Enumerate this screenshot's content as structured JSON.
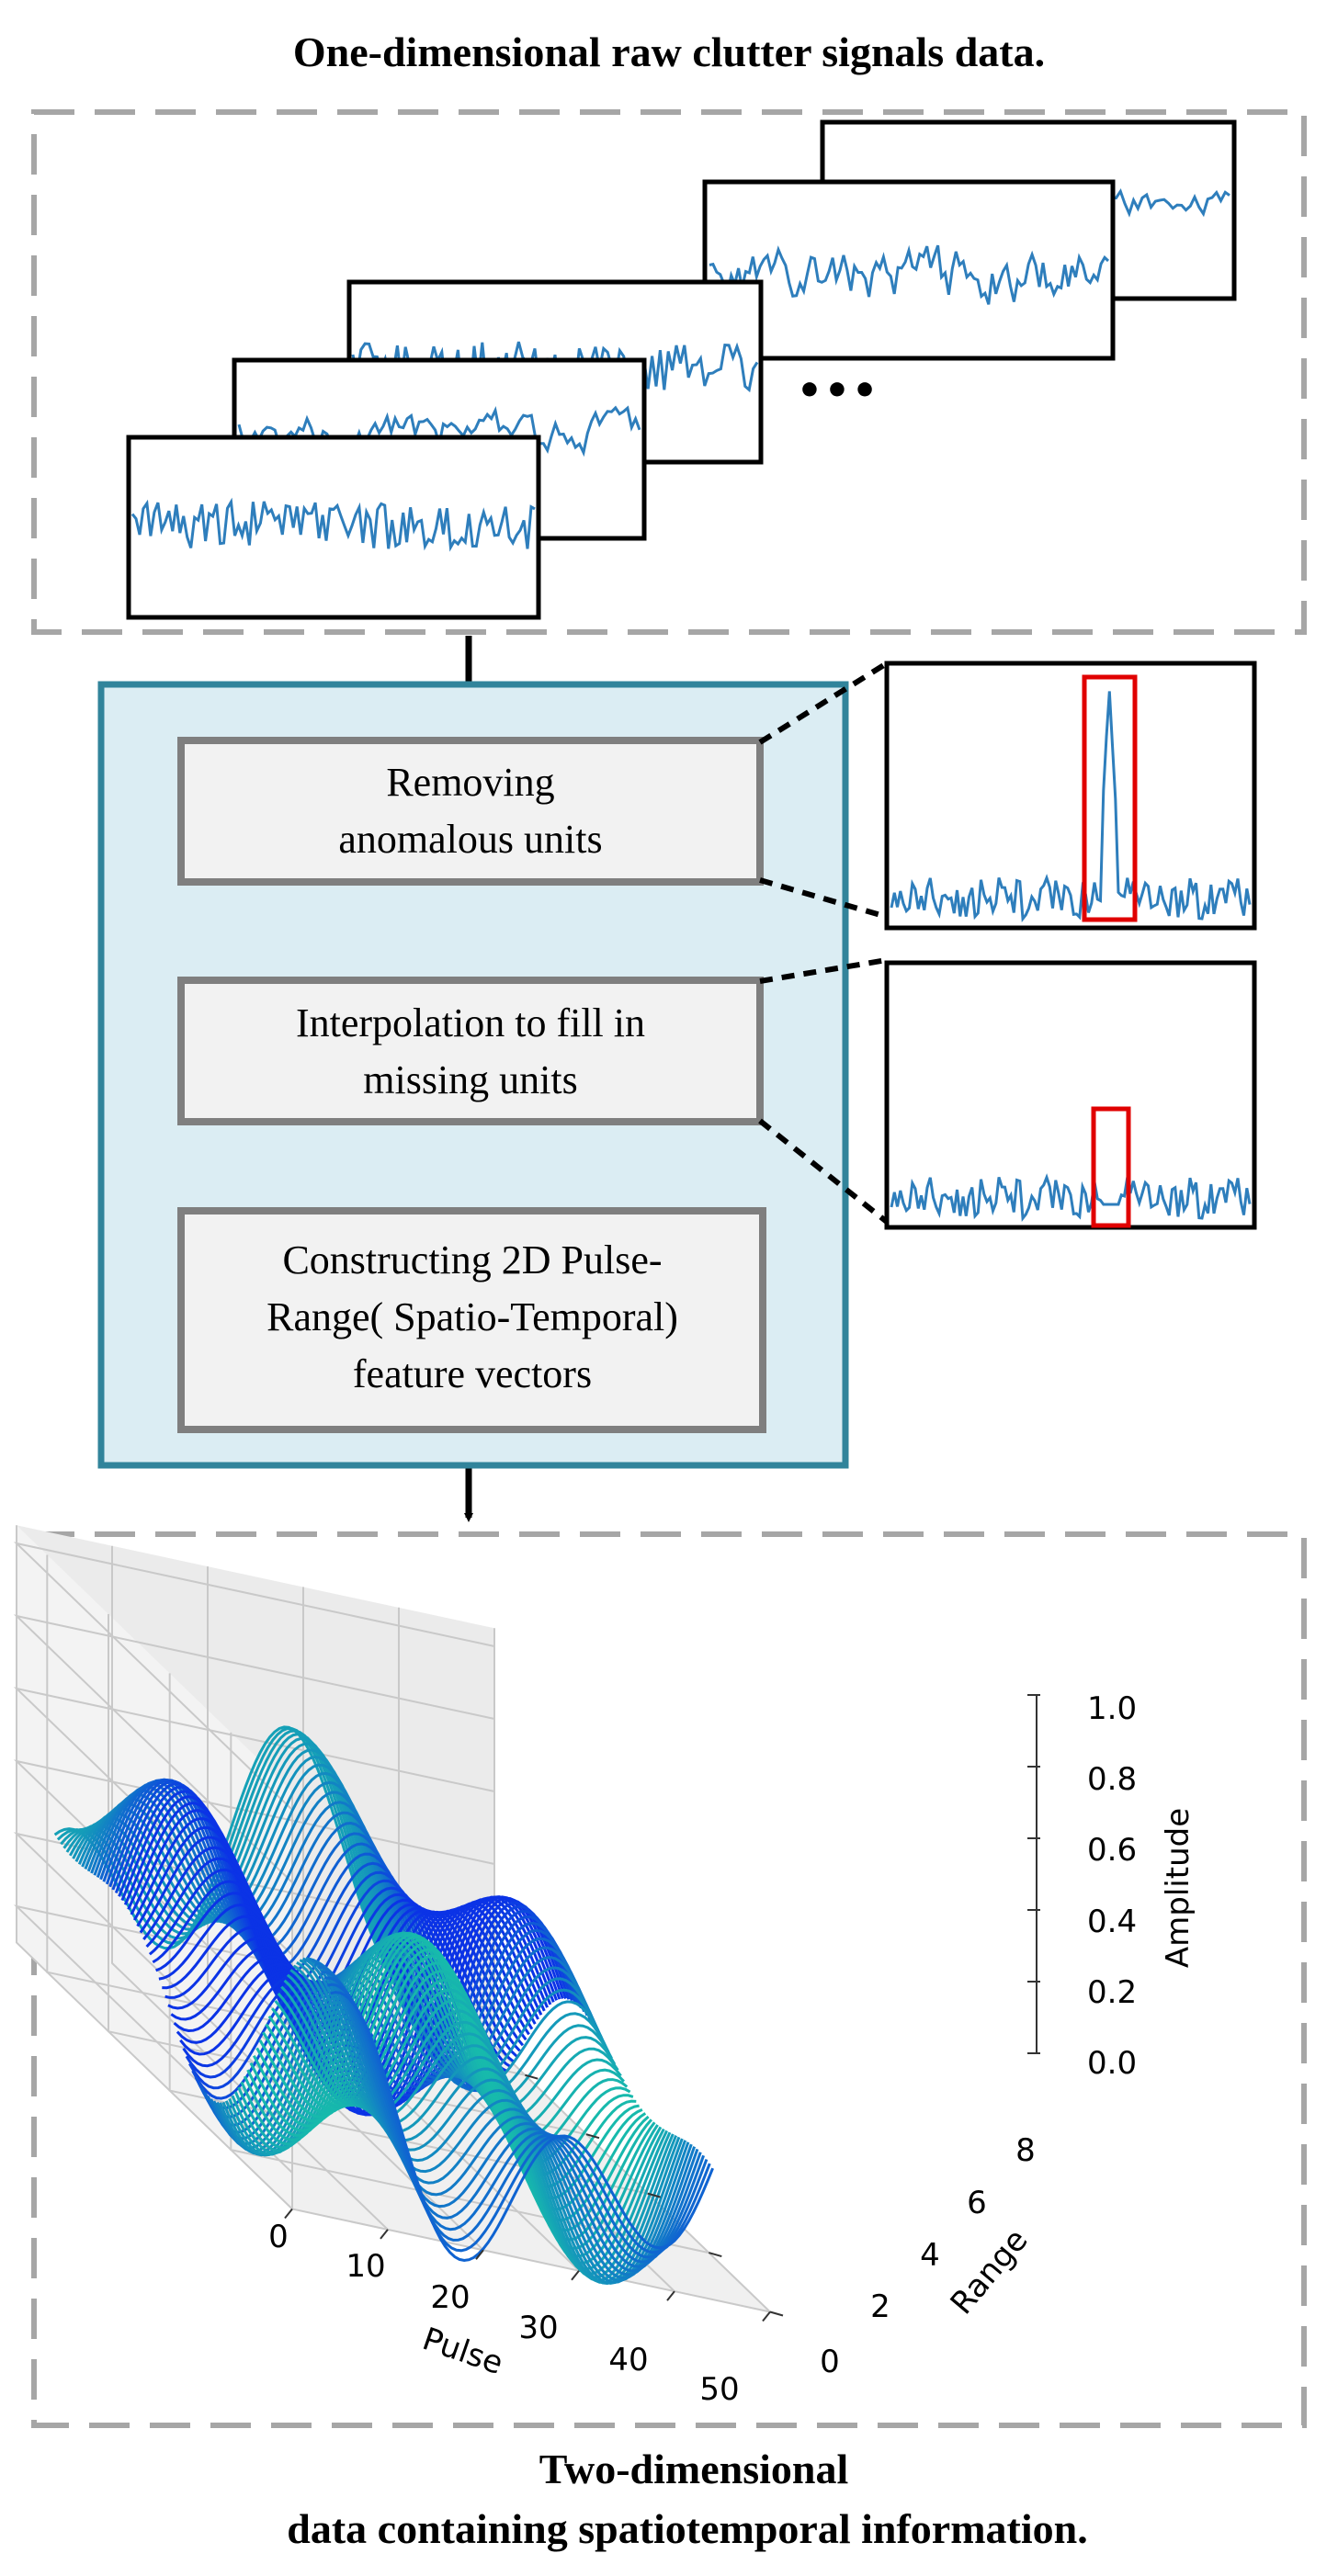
{
  "top_title": "One-dimensional raw clutter signals data.",
  "ellipsis": "•••",
  "steps": [
    {
      "lines": [
        "Removing",
        "anomalous units"
      ]
    },
    {
      "lines": [
        "Interpolation to fill in",
        "missing units"
      ]
    },
    {
      "lines": [
        "Constructing 2D Pulse-",
        "Range( Spatio-Temporal)",
        "feature vectors"
      ]
    }
  ],
  "bottom_title": [
    "Two-dimensional",
    "data containing spatiotemporal  information."
  ],
  "colors": {
    "dashed_border": "#a6a6a6",
    "process_fill": "#dbedf3",
    "process_border": "#31849b",
    "step_fill": "#f2f2f2",
    "step_border": "#7f7f7f",
    "signal_line": "#2e7ebc",
    "highlight": "#e00000",
    "surface_low": "#0b33e6",
    "surface_high": "#1be39a"
  },
  "chart_data": {
    "type": "surface-3d",
    "title": "",
    "x": {
      "label": "Pulse",
      "ticks": [
        0,
        10,
        20,
        30,
        40,
        50
      ],
      "range": [
        0,
        50
      ]
    },
    "y": {
      "label": "Range",
      "ticks": [
        0,
        2,
        4,
        6,
        8
      ],
      "range": [
        0,
        9
      ]
    },
    "z": {
      "label": "Amplitude",
      "ticks": [
        "0.0",
        "0.2",
        "0.4",
        "0.6",
        "0.8",
        "1.0"
      ],
      "range": [
        0,
        1
      ]
    },
    "colormap": "winter",
    "grid": true
  }
}
